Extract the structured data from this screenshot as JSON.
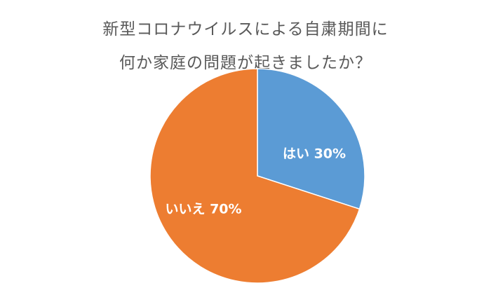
{
  "chart_data": {
    "type": "pie",
    "title_lines": [
      "新型コロナウイルスによる自粛期間に",
      "何か家庭の問題が起きましたか？"
    ],
    "categories": [
      "はい",
      "いいえ"
    ],
    "values": [
      30,
      70
    ],
    "labels": [
      "はい 30%",
      "いいえ 70%"
    ],
    "colors": [
      "#5b9bd5",
      "#ed7d31"
    ],
    "start_angle": "12 o'clock",
    "direction": "clockwise",
    "legend": "none"
  }
}
